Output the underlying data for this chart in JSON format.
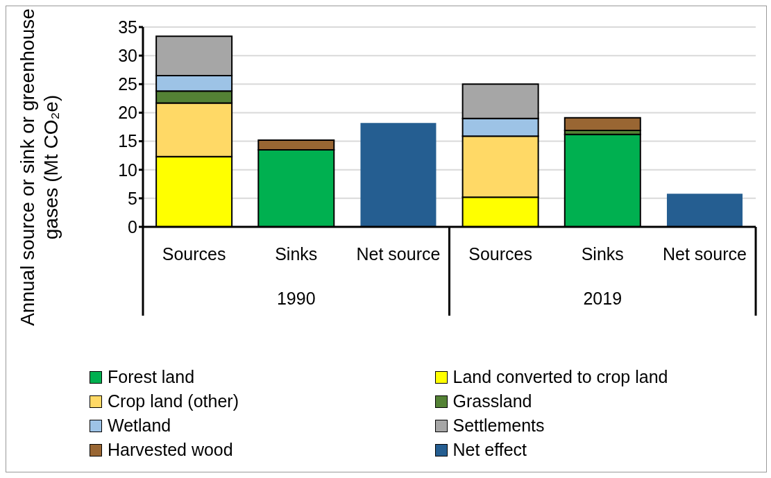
{
  "chart_data": {
    "type": "bar",
    "stacked": true,
    "ylabel": "Annual source or sink or greenhouse gases (Mt CO₂e)",
    "categories": [
      "Sources",
      "Sinks",
      "Net source",
      "Sources",
      "Sinks",
      "Net source"
    ],
    "annotations": [
      "1990",
      "2019"
    ],
    "series": [
      {
        "name": "Forest land",
        "color": "#00b050",
        "values": [
          null,
          13.5,
          null,
          null,
          16.2,
          null
        ]
      },
      {
        "name": "Land converted to crop land",
        "color": "#ffff00",
        "values": [
          12.3,
          null,
          null,
          5.2,
          null,
          null
        ]
      },
      {
        "name": "Crop land (other)",
        "color": "#ffd966",
        "values": [
          9.4,
          null,
          null,
          10.7,
          null,
          null
        ]
      },
      {
        "name": "Grassland",
        "color": "#548235",
        "values": [
          2.1,
          null,
          null,
          null,
          0.7,
          null
        ]
      },
      {
        "name": "Wetland",
        "color": "#9dc3e6",
        "values": [
          2.7,
          null,
          null,
          3.1,
          null,
          null
        ]
      },
      {
        "name": "Settlements",
        "color": "#a6a6a6",
        "values": [
          6.9,
          null,
          null,
          6.0,
          null,
          null
        ]
      },
      {
        "name": "Harvested wood",
        "color": "#996633",
        "values": [
          null,
          1.7,
          null,
          null,
          2.2,
          null
        ]
      },
      {
        "name": "Net effect",
        "color": "#255e91",
        "values": [
          null,
          null,
          18.2,
          null,
          null,
          5.8
        ]
      }
    ],
    "ylim": [
      0,
      35
    ],
    "yticks": [
      0,
      5,
      10,
      15,
      20,
      25,
      30,
      35
    ],
    "grid": "y",
    "legend": "bottom"
  }
}
